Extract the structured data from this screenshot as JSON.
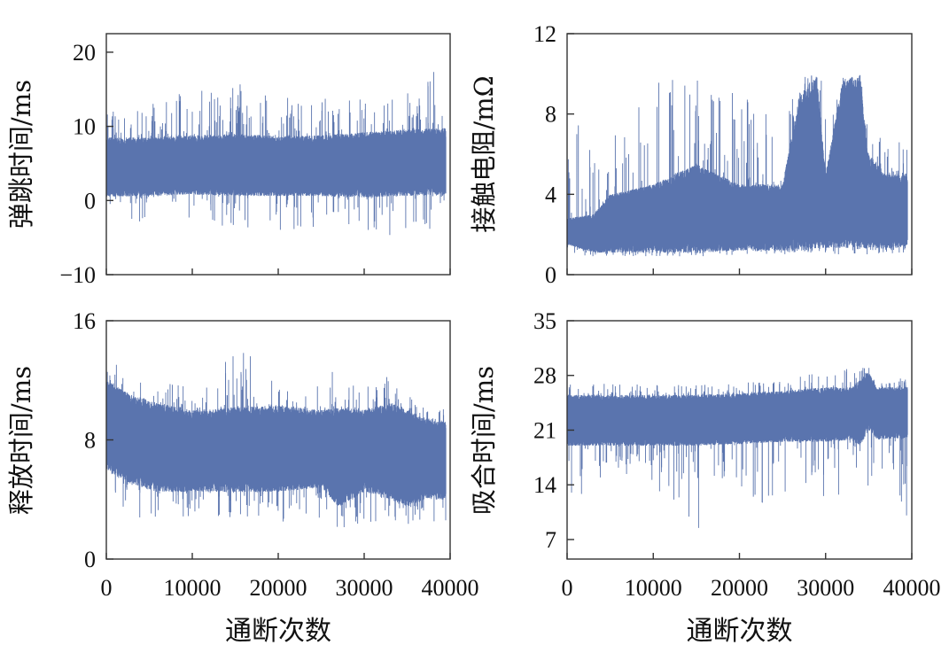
{
  "series_color": "#5a74ae",
  "chart_data": [
    {
      "type": "line",
      "title": "",
      "xlabel": "",
      "ylabel": "弹跳时间/ms",
      "xlim": [
        0,
        40000
      ],
      "ylim": [
        -10,
        22.5
      ],
      "yticks": [
        -10,
        0,
        10,
        20
      ],
      "ytick_labels": [
        "−10",
        "0",
        "10",
        "20"
      ],
      "xticks": [
        0,
        10000,
        20000,
        30000,
        40000
      ],
      "xtick_labels": [],
      "grid": false,
      "series": [
        {
          "x": [
            0,
            5000,
            10000,
            15000,
            20000,
            25000,
            30000,
            35000,
            39500
          ],
          "envelope_low": [
            0.5,
            0.6,
            0.8,
            0.6,
            0.6,
            0.6,
            0.4,
            0.6,
            0.8
          ],
          "envelope_high": [
            8.5,
            8.5,
            8.8,
            9.0,
            8.7,
            8.8,
            9.2,
            9.6,
            9.8
          ],
          "spike_max": [
            12,
            13,
            15,
            16,
            14,
            14,
            14,
            15,
            19
          ],
          "spike_min": [
            -3,
            -3,
            -3,
            -4,
            -4,
            -4,
            -5,
            -5,
            -4
          ]
        }
      ]
    },
    {
      "type": "line",
      "title": "",
      "xlabel": "",
      "ylabel": "接触电阻/mΩ",
      "xlim": [
        0,
        40000
      ],
      "ylim": [
        0,
        12
      ],
      "yticks": [
        0,
        4,
        8,
        12
      ],
      "ytick_labels": [
        "0",
        "4",
        "8",
        "12"
      ],
      "xticks": [
        0,
        10000,
        20000,
        30000,
        40000
      ],
      "xtick_labels": [],
      "grid": false,
      "series": [
        {
          "x": [
            0,
            3000,
            5000,
            10000,
            15000,
            20000,
            25000,
            27000,
            29000,
            30000,
            32000,
            34000,
            35000,
            37000,
            39500
          ],
          "envelope_low": [
            1.5,
            1.1,
            1.1,
            1.1,
            1.1,
            1.2,
            1.2,
            1.2,
            1.3,
            1.3,
            1.3,
            1.3,
            1.3,
            1.3,
            1.4
          ],
          "envelope_high": [
            2.8,
            3.0,
            4.0,
            4.5,
            5.5,
            4.5,
            4.5,
            9.0,
            9.8,
            5.0,
            9.8,
            9.8,
            6.0,
            5.0,
            5.0
          ],
          "spike_max": [
            8.8,
            6,
            7,
            9.5,
            10,
            9,
            8,
            9.9,
            10,
            9.9,
            10,
            10,
            8,
            7.5,
            6.5
          ],
          "spike_min": [
            1.0,
            0.9,
            0.9,
            0.9,
            0.9,
            1.0,
            1.0,
            1.0,
            1.0,
            1.0,
            1.0,
            1.0,
            1.0,
            1.0,
            1.1
          ]
        }
      ]
    },
    {
      "type": "line",
      "title": "",
      "xlabel": "通断次数",
      "ylabel": "释放时间/ms",
      "xlim": [
        0,
        40000
      ],
      "ylim": [
        0,
        16
      ],
      "yticks": [
        0,
        8,
        16
      ],
      "ytick_labels": [
        "0",
        "8",
        "16"
      ],
      "xticks": [
        0,
        10000,
        20000,
        30000,
        40000
      ],
      "xtick_labels": [
        "0",
        "10000",
        "20000",
        "30000",
        "40000"
      ],
      "grid": false,
      "series": [
        {
          "x": [
            0,
            3000,
            6000,
            10000,
            15000,
            20000,
            25000,
            27000,
            30000,
            33000,
            35000,
            37000,
            39500
          ],
          "envelope_low": [
            6.0,
            5.0,
            4.5,
            4.5,
            4.5,
            4.5,
            4.8,
            3.5,
            4.5,
            4.0,
            3.5,
            4.0,
            4.0
          ],
          "envelope_high": [
            12.0,
            11.0,
            10.5,
            10.0,
            10.2,
            10.3,
            10.0,
            10.2,
            10.0,
            10.5,
            10.0,
            9.5,
            9.2
          ],
          "spike_max": [
            13.5,
            12.5,
            12,
            12.5,
            14.5,
            12,
            12,
            13,
            12,
            12.5,
            11,
            10.5,
            10
          ],
          "spike_min": [
            5,
            2.5,
            2.5,
            2.8,
            2.8,
            2.5,
            2.5,
            2.0,
            2.5,
            2.5,
            2.0,
            2.0,
            2.0
          ]
        }
      ]
    },
    {
      "type": "line",
      "title": "",
      "xlabel": "通断次数",
      "ylabel": "吸合时间/ms",
      "xlim": [
        0,
        40000
      ],
      "ylim": [
        4.5,
        35
      ],
      "yticks": [
        7,
        14,
        21,
        28,
        35
      ],
      "ytick_labels": [
        "7",
        "14",
        "21",
        "28",
        "35"
      ],
      "xticks": [
        0,
        10000,
        20000,
        30000,
        40000
      ],
      "xtick_labels": [
        "0",
        "10000",
        "20000",
        "30000",
        "40000"
      ],
      "grid": false,
      "series": [
        {
          "x": [
            0,
            5000,
            10000,
            15000,
            20000,
            25000,
            30000,
            33000,
            34000,
            35000,
            36000,
            39500
          ],
          "envelope_low": [
            19.0,
            19.0,
            19.0,
            19.0,
            19.2,
            19.5,
            19.5,
            19.7,
            19.0,
            21.0,
            19.8,
            20.0
          ],
          "envelope_high": [
            25.5,
            25.5,
            25.5,
            25.5,
            25.7,
            26.0,
            26.5,
            26.5,
            27.5,
            28.5,
            26.5,
            26.5
          ],
          "spike_max": [
            27,
            27,
            26.8,
            27,
            27,
            27.5,
            28.5,
            29,
            29,
            29.2,
            28,
            27.5
          ],
          "spike_min": [
            11,
            16,
            14,
            8,
            9,
            12,
            8,
            14,
            16,
            10,
            16,
            8
          ]
        }
      ]
    }
  ]
}
